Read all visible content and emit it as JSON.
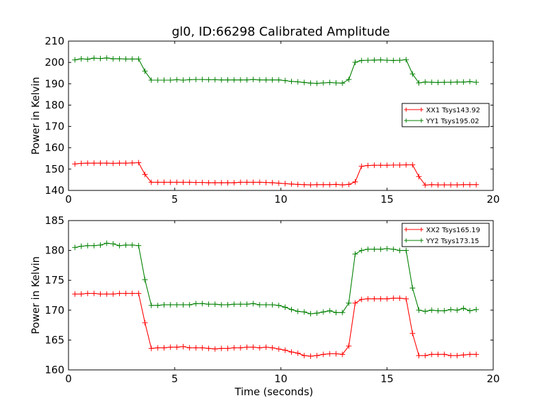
{
  "chart_data": [
    {
      "type": "line",
      "title": "gl0, ID:66298 Calibrated Amplitude",
      "xlabel": "",
      "ylabel": "Power in Kelvin",
      "xlim": [
        0,
        20
      ],
      "ylim": [
        140,
        210
      ],
      "xticks": [
        0,
        5,
        10,
        15,
        20
      ],
      "yticks": [
        140,
        150,
        160,
        170,
        180,
        190,
        200,
        210
      ],
      "grid": false,
      "legend_position": "center-right",
      "x": [
        0.3,
        0.6,
        0.9,
        1.2,
        1.5,
        1.8,
        2.1,
        2.4,
        2.7,
        3.0,
        3.3,
        3.6,
        3.9,
        4.2,
        4.5,
        4.8,
        5.1,
        5.4,
        5.7,
        6.0,
        6.3,
        6.6,
        6.9,
        7.2,
        7.5,
        7.8,
        8.1,
        8.4,
        8.7,
        9.0,
        9.3,
        9.6,
        9.9,
        10.2,
        10.5,
        10.8,
        11.1,
        11.4,
        11.7,
        12.0,
        12.3,
        12.6,
        12.9,
        13.2,
        13.5,
        13.8,
        14.1,
        14.4,
        14.7,
        15.0,
        15.3,
        15.6,
        15.9,
        16.2,
        16.5,
        16.8,
        17.1,
        17.4,
        17.7,
        18.0,
        18.3,
        18.6,
        18.9,
        19.2
      ],
      "series": [
        {
          "name": "XX1 Tsys143.92",
          "color": "#ff0000",
          "values": [
            152.4,
            152.7,
            152.8,
            152.8,
            152.8,
            152.8,
            152.7,
            152.8,
            152.8,
            152.9,
            153.0,
            147.5,
            143.8,
            143.8,
            143.8,
            143.8,
            143.8,
            143.8,
            143.8,
            143.7,
            143.7,
            143.6,
            143.6,
            143.6,
            143.6,
            143.6,
            143.8,
            143.8,
            143.8,
            143.8,
            143.7,
            143.6,
            143.4,
            143.2,
            143.0,
            142.8,
            142.7,
            142.6,
            142.7,
            142.7,
            142.7,
            142.8,
            142.6,
            142.8,
            144.0,
            151.3,
            151.7,
            151.8,
            151.8,
            151.8,
            151.9,
            151.9,
            152.0,
            152.0,
            146.5,
            142.5,
            142.7,
            142.6,
            142.6,
            142.6,
            142.6,
            142.7,
            142.7,
            142.7
          ]
        },
        {
          "name": "YY1 Tsys195.02",
          "color": "#008000",
          "values": [
            201.2,
            201.7,
            201.5,
            202.0,
            201.8,
            202.1,
            201.7,
            201.7,
            201.6,
            201.6,
            201.6,
            195.9,
            191.7,
            191.7,
            191.7,
            191.7,
            191.9,
            191.7,
            191.9,
            192.0,
            192.0,
            191.9,
            191.9,
            191.8,
            191.8,
            191.8,
            191.8,
            191.8,
            192.0,
            191.8,
            191.8,
            191.8,
            191.8,
            191.5,
            191.1,
            190.9,
            190.6,
            190.3,
            190.2,
            190.4,
            190.6,
            190.4,
            190.3,
            192.0,
            200.1,
            200.9,
            201.0,
            201.1,
            201.2,
            201.0,
            200.9,
            201.0,
            201.3,
            194.6,
            190.4,
            190.8,
            190.7,
            190.6,
            190.7,
            190.7,
            190.8,
            190.8,
            191.0,
            190.7
          ]
        }
      ]
    },
    {
      "type": "line",
      "title": "",
      "xlabel": "Time (seconds)",
      "ylabel": "Power in Kelvin",
      "xlim": [
        0,
        20
      ],
      "ylim": [
        160,
        185
      ],
      "xticks": [
        0,
        5,
        10,
        15,
        20
      ],
      "yticks": [
        160,
        165,
        170,
        175,
        180,
        185
      ],
      "grid": false,
      "legend_position": "top-right",
      "x": [
        0.3,
        0.6,
        0.9,
        1.2,
        1.5,
        1.8,
        2.1,
        2.4,
        2.7,
        3.0,
        3.3,
        3.6,
        3.9,
        4.2,
        4.5,
        4.8,
        5.1,
        5.4,
        5.7,
        6.0,
        6.3,
        6.6,
        6.9,
        7.2,
        7.5,
        7.8,
        8.1,
        8.4,
        8.7,
        9.0,
        9.3,
        9.6,
        9.9,
        10.2,
        10.5,
        10.8,
        11.1,
        11.4,
        11.7,
        12.0,
        12.3,
        12.6,
        12.9,
        13.2,
        13.5,
        13.8,
        14.1,
        14.4,
        14.7,
        15.0,
        15.3,
        15.6,
        15.9,
        16.2,
        16.5,
        16.8,
        17.1,
        17.4,
        17.7,
        18.0,
        18.3,
        18.6,
        18.9,
        19.2
      ],
      "series": [
        {
          "name": "XX2 Tsys165.19",
          "color": "#ff0000",
          "values": [
            172.7,
            172.7,
            172.8,
            172.8,
            172.7,
            172.7,
            172.7,
            172.8,
            172.8,
            172.8,
            172.8,
            167.9,
            163.6,
            163.7,
            163.7,
            163.8,
            163.8,
            163.9,
            163.7,
            163.7,
            163.7,
            163.6,
            163.5,
            163.6,
            163.6,
            163.7,
            163.7,
            163.8,
            163.8,
            163.7,
            163.8,
            163.7,
            163.5,
            163.3,
            163.0,
            162.8,
            162.4,
            162.3,
            162.4,
            162.6,
            162.7,
            162.7,
            162.6,
            164.0,
            171.2,
            171.8,
            171.9,
            171.9,
            171.9,
            171.9,
            172.0,
            172.0,
            171.9,
            166.1,
            162.4,
            162.4,
            162.6,
            162.6,
            162.6,
            162.4,
            162.4,
            162.5,
            162.6,
            162.6
          ]
        },
        {
          "name": "YY2 Tsys173.15",
          "color": "#008000",
          "values": [
            180.5,
            180.7,
            180.8,
            180.8,
            180.9,
            181.2,
            181.1,
            180.8,
            180.9,
            180.9,
            180.8,
            175.1,
            170.8,
            170.8,
            170.9,
            170.9,
            170.9,
            170.9,
            170.9,
            171.1,
            171.1,
            171.0,
            171.0,
            170.9,
            170.9,
            171.0,
            171.0,
            171.0,
            171.1,
            170.9,
            170.9,
            170.9,
            170.8,
            170.5,
            170.1,
            169.8,
            169.7,
            169.4,
            169.5,
            169.7,
            169.9,
            169.6,
            169.6,
            171.2,
            179.4,
            180.0,
            180.2,
            180.2,
            180.2,
            180.3,
            180.2,
            180.0,
            180.0,
            173.7,
            170.0,
            169.8,
            170.0,
            169.9,
            169.9,
            170.1,
            170.0,
            170.3,
            169.9,
            170.1
          ]
        }
      ]
    }
  ]
}
